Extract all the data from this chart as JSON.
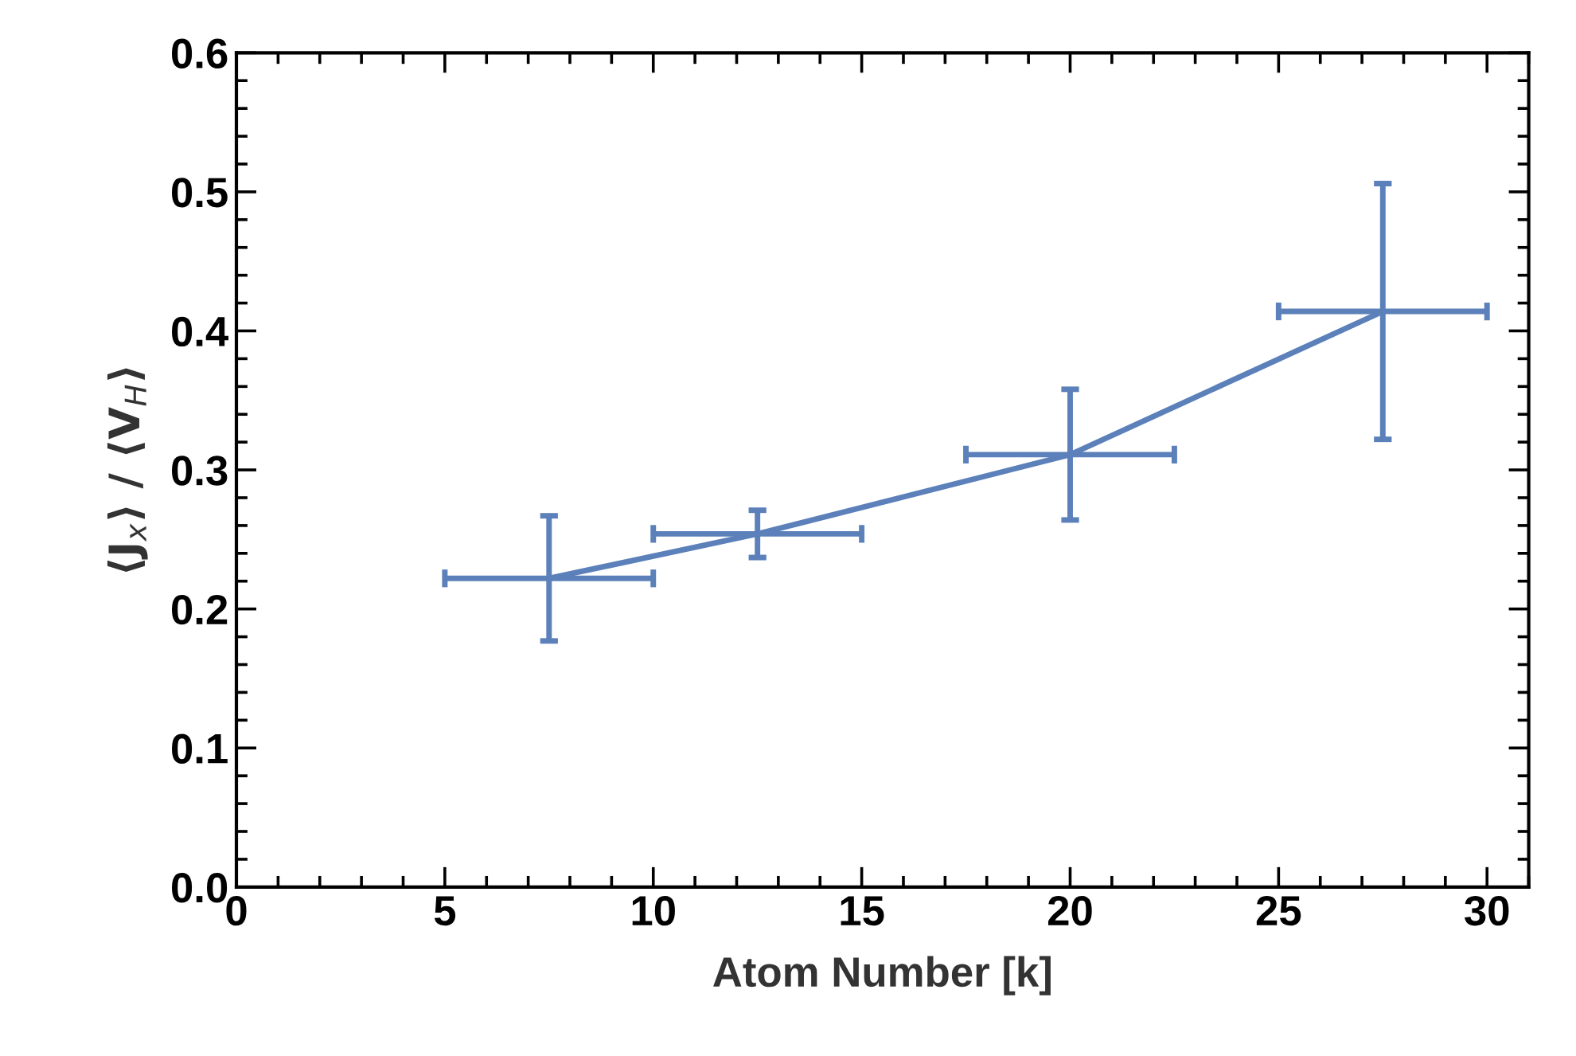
{
  "chart_data": {
    "type": "line",
    "xlabel": "Atom Number [k]",
    "ylabel": "⟨J$_{x}$⟩ / ⟨V$_{H}$⟩",
    "x": [
      7.5,
      12.5,
      20,
      27.5
    ],
    "series": [
      {
        "color": "#5b80ba",
        "values": [
          0.222,
          0.254,
          0.311,
          0.414
        ],
        "errors": [
          0.045,
          0.017,
          0.047,
          0.092
        ],
        "xerrors": [
          2.5,
          2.5,
          2.5,
          2.5
        ]
      }
    ],
    "xlim": [
      0,
      31
    ],
    "xticks": [
      0,
      5,
      10,
      15,
      20,
      25,
      30
    ],
    "ylim": [
      0,
      0.6
    ],
    "yticks": [
      {
        "value": 0,
        "label": "0.0"
      },
      0.1,
      0.2,
      0.3,
      0.4,
      0.5,
      0.6
    ],
    "grid": false,
    "marker": "none",
    "line_style": "solid"
  }
}
